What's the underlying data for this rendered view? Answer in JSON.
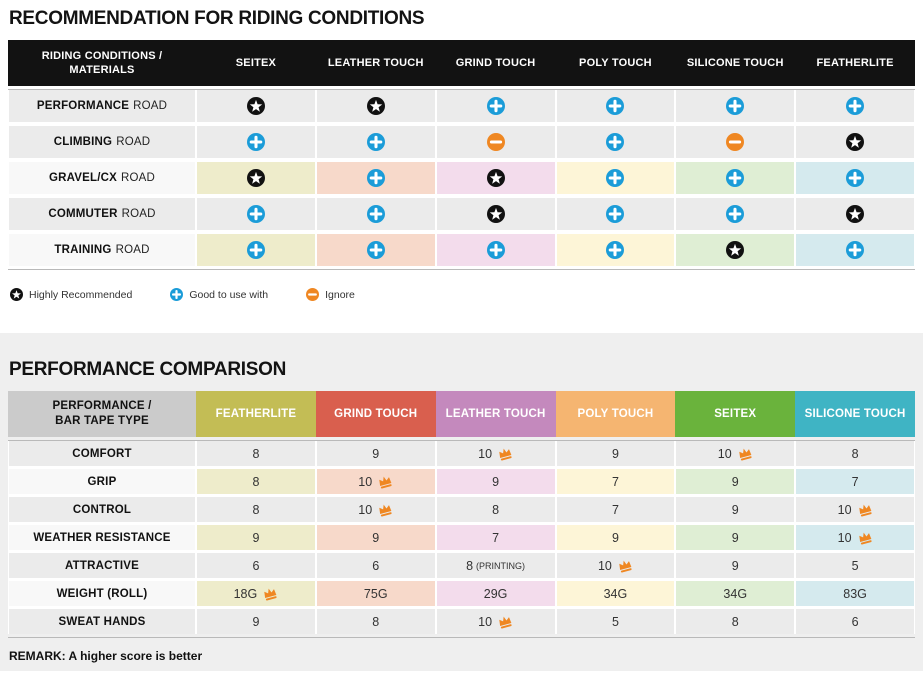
{
  "palette": {
    "icon_star": "#111111",
    "icon_plus": "#1b9cd8",
    "icon_minus": "#ef8722",
    "crown": "#ef8722",
    "highlight_tints": [
      "#eeeccb",
      "#f7d9ca",
      "#f3dcec",
      "#fdf5d7",
      "#dfeed4",
      "#d5eaee"
    ],
    "header_corner_gray": "#cbcbcb",
    "header_black": "#121212"
  },
  "chart_data": [
    {
      "type": "table",
      "title": "RECOMMENDATION FOR RIDING CONDITIONS",
      "corner_header": "RIDING CONDITIONS /\nMATERIALS",
      "columns": [
        "SEITEX",
        "LEATHER TOUCH",
        "GRIND TOUCH",
        "POLY TOUCH",
        "SILICONE TOUCH",
        "FEATHERLITE"
      ],
      "rows": [
        {
          "label": "PERFORMANCE",
          "label_suffix": "ROAD",
          "highlight": false,
          "cells": [
            "star",
            "star",
            "plus",
            "plus",
            "plus",
            "plus"
          ]
        },
        {
          "label": "CLIMBING",
          "label_suffix": "ROAD",
          "highlight": false,
          "cells": [
            "plus",
            "plus",
            "minus",
            "plus",
            "minus",
            "star"
          ]
        },
        {
          "label": "GRAVEL/CX",
          "label_suffix": "ROAD",
          "highlight": true,
          "cells": [
            "star",
            "plus",
            "star",
            "plus",
            "plus",
            "plus"
          ]
        },
        {
          "label": "COMMUTER",
          "label_suffix": "ROAD",
          "highlight": false,
          "cells": [
            "plus",
            "plus",
            "star",
            "plus",
            "plus",
            "star"
          ]
        },
        {
          "label": "TRAINING",
          "label_suffix": "ROAD",
          "highlight": true,
          "cells": [
            "plus",
            "plus",
            "plus",
            "plus",
            "star",
            "plus"
          ]
        }
      ],
      "legend": [
        {
          "icon": "star",
          "label": "Highly Recommended"
        },
        {
          "icon": "plus",
          "label": "Good to use with"
        },
        {
          "icon": "minus",
          "label": "Ignore"
        }
      ]
    },
    {
      "type": "table",
      "title": "PERFORMANCE COMPARISON",
      "corner_header": "PERFORMANCE /\nBAR TAPE TYPE",
      "columns": [
        {
          "label": "FEATHERLITE",
          "color": "#c3bd55"
        },
        {
          "label": "GRIND TOUCH",
          "color": "#d95f4e"
        },
        {
          "label": "LEATHER TOUCH",
          "color": "#c489bd"
        },
        {
          "label": "POLY TOUCH",
          "color": "#f5b571"
        },
        {
          "label": "SEITEX",
          "color": "#6ab33c"
        },
        {
          "label": "SILICONE TOUCH",
          "color": "#3fb4c4"
        }
      ],
      "rows": [
        {
          "label": "COMFORT",
          "highlight": false,
          "cells": [
            {
              "value": "8"
            },
            {
              "value": "9"
            },
            {
              "value": "10",
              "crown": true
            },
            {
              "value": "9"
            },
            {
              "value": "10",
              "crown": true
            },
            {
              "value": "8"
            }
          ]
        },
        {
          "label": "GRIP",
          "highlight": true,
          "cells": [
            {
              "value": "8"
            },
            {
              "value": "10",
              "crown": true
            },
            {
              "value": "9"
            },
            {
              "value": "7"
            },
            {
              "value": "9"
            },
            {
              "value": "7"
            }
          ]
        },
        {
          "label": "CONTROL",
          "highlight": false,
          "cells": [
            {
              "value": "8"
            },
            {
              "value": "10",
              "crown": true
            },
            {
              "value": "8"
            },
            {
              "value": "7"
            },
            {
              "value": "9"
            },
            {
              "value": "10",
              "crown": true
            }
          ]
        },
        {
          "label": "WEATHER RESISTANCE",
          "highlight": true,
          "cells": [
            {
              "value": "9"
            },
            {
              "value": "9"
            },
            {
              "value": "7"
            },
            {
              "value": "9"
            },
            {
              "value": "9"
            },
            {
              "value": "10",
              "crown": true
            }
          ]
        },
        {
          "label": "ATTRACTIVE",
          "highlight": false,
          "cells": [
            {
              "value": "6"
            },
            {
              "value": "6"
            },
            {
              "value": "8",
              "note": "(PRINTING)"
            },
            {
              "value": "10",
              "crown": true
            },
            {
              "value": "9"
            },
            {
              "value": "5"
            }
          ]
        },
        {
          "label": "WEIGHT (ROLL)",
          "highlight": true,
          "cells": [
            {
              "value": "18G",
              "crown": true
            },
            {
              "value": "75G"
            },
            {
              "value": "29G"
            },
            {
              "value": "34G"
            },
            {
              "value": "34G"
            },
            {
              "value": "83G"
            }
          ]
        },
        {
          "label": "SWEAT HANDS",
          "highlight": false,
          "cells": [
            {
              "value": "9"
            },
            {
              "value": "8"
            },
            {
              "value": "10",
              "crown": true
            },
            {
              "value": "5"
            },
            {
              "value": "8"
            },
            {
              "value": "6"
            }
          ]
        }
      ],
      "remark": "REMARK: A higher score is better"
    }
  ]
}
